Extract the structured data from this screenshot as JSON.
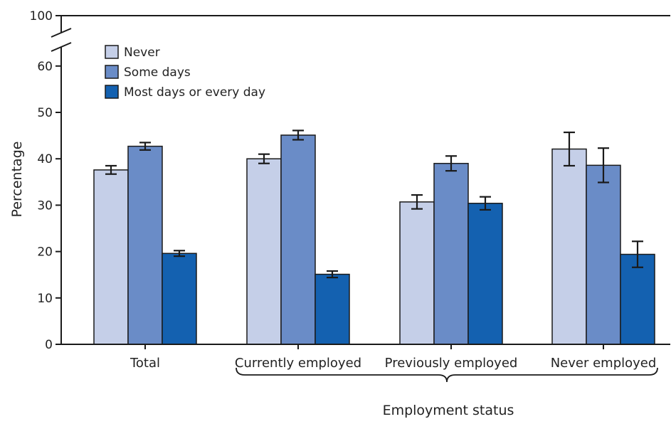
{
  "chart_data": {
    "type": "bar",
    "title": "",
    "xlabel": "Employment status",
    "ylabel": "Percentage",
    "ylim": [
      0,
      100
    ],
    "axis_break": {
      "from": 60,
      "to": 100
    },
    "yticks": [
      0,
      10,
      20,
      30,
      40,
      50,
      60,
      100
    ],
    "grid": false,
    "legend_position": "top-left",
    "categories": [
      "Total",
      "Currently employed",
      "Previously employed",
      "Never employed"
    ],
    "bracket_group": [
      "Currently employed",
      "Previously employed",
      "Never employed"
    ],
    "series": [
      {
        "name": "Never",
        "color": "#c5cfe8",
        "values": [
          37.6,
          40.0,
          30.7,
          42.1
        ],
        "ci_low": [
          36.7,
          39.0,
          29.2,
          38.5
        ],
        "ci_high": [
          38.5,
          41.0,
          32.2,
          45.7
        ]
      },
      {
        "name": "Some days",
        "color": "#6a8cc7",
        "values": [
          42.7,
          45.1,
          39.0,
          38.6
        ],
        "ci_low": [
          41.9,
          44.1,
          37.4,
          34.9
        ],
        "ci_high": [
          43.5,
          46.1,
          40.6,
          42.3
        ]
      },
      {
        "name": "Most days or every day",
        "color": "#1461b0",
        "values": [
          19.6,
          15.1,
          30.4,
          19.4
        ],
        "ci_low": [
          19.0,
          14.4,
          29.0,
          16.6
        ],
        "ci_high": [
          20.2,
          15.8,
          31.8,
          22.2
        ]
      }
    ]
  }
}
